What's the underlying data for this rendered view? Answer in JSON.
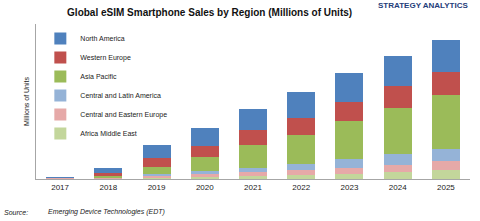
{
  "chart_data": {
    "type": "bar",
    "title": "Global eSIM Smartphone Sales by Region (Millions of Units)",
    "y_label": "Millions of Units",
    "annotations": [
      "STRATEGY ANALYTICS",
      "Source:",
      "Emerging Device Technologies (EDT)"
    ],
    "categories": [
      "2017",
      "2018",
      "2019",
      "2020",
      "2021",
      "2022",
      "2023",
      "2024",
      "2025"
    ],
    "stacked": true,
    "legend": "top-left",
    "grid": false,
    "tick_labels": "x",
    "ylim": [
      0,
      600
    ],
    "series": [
      {
        "name": "Africa Middle East",
        "color": "#c3d69b",
        "values": [
          1,
          1,
          4,
          8,
          12,
          16,
          20,
          28,
          36
        ]
      },
      {
        "name": "Central and Eastern Europe",
        "color": "#e6a9a8",
        "values": [
          1,
          2,
          8,
          12,
          16,
          20,
          24,
          28,
          32
        ]
      },
      {
        "name": "Central and Latin America",
        "color": "#95b3d7",
        "values": [
          1,
          2,
          8,
          12,
          16,
          24,
          32,
          40,
          48
        ]
      },
      {
        "name": "Asia Pacific",
        "color": "#9bbb59",
        "values": [
          1,
          8,
          28,
          52,
          88,
          112,
          148,
          180,
          208
        ]
      },
      {
        "name": "Western Europe",
        "color": "#c0504d",
        "values": [
          1,
          12,
          32,
          44,
          56,
          64,
          76,
          84,
          92
        ]
      },
      {
        "name": "North America",
        "color": "#4f81bd",
        "values": [
          3,
          16,
          52,
          68,
          84,
          100,
          112,
          116,
          124
        ]
      }
    ]
  }
}
